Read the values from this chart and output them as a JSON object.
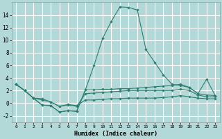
{
  "xlabel": "Humidex (Indice chaleur)",
  "background_color": "#b2d8d8",
  "grid_color": "#ffffff",
  "line_color": "#2e7d6e",
  "xlim": [
    -0.5,
    23.5
  ],
  "ylim": [
    -3.0,
    16.0
  ],
  "xticks": [
    0,
    1,
    2,
    3,
    4,
    5,
    6,
    7,
    8,
    9,
    10,
    11,
    12,
    13,
    14,
    15,
    16,
    17,
    18,
    19,
    20,
    21,
    22,
    23
  ],
  "yticks": [
    -2,
    0,
    2,
    4,
    6,
    8,
    10,
    12,
    14
  ],
  "lines": [
    {
      "x": [
        0,
        1,
        2,
        3,
        4,
        5,
        6,
        7,
        8,
        9,
        10,
        11,
        12,
        13,
        14,
        15,
        16,
        17,
        18,
        19,
        20,
        21,
        22,
        23
      ],
      "y": [
        3.0,
        2.0,
        0.8,
        -0.3,
        -0.4,
        -1.4,
        -1.2,
        -1.3,
        2.1,
        6.0,
        10.3,
        13.0,
        15.3,
        15.2,
        14.8,
        8.5,
        6.5,
        4.5,
        3.0,
        2.8,
        2.5,
        1.5,
        3.8,
        1.2
      ]
    },
    {
      "x": [
        0,
        1,
        2,
        3,
        4,
        5,
        6,
        7,
        8,
        9,
        10,
        11,
        12,
        13,
        14,
        15,
        16,
        17,
        18,
        19,
        20,
        21,
        22,
        23
      ],
      "y": [
        3.0,
        2.0,
        0.8,
        -0.3,
        -0.4,
        -1.4,
        -1.2,
        -1.3,
        2.1,
        2.1,
        2.2,
        2.2,
        2.3,
        2.3,
        2.4,
        2.5,
        2.6,
        2.7,
        2.8,
        3.0,
        2.5,
        1.5,
        1.3,
        1.2
      ]
    },
    {
      "x": [
        0,
        1,
        2,
        3,
        4,
        5,
        6,
        7,
        8,
        9,
        10,
        11,
        12,
        13,
        14,
        15,
        16,
        17,
        18,
        19,
        20,
        21,
        22,
        23
      ],
      "y": [
        3.0,
        2.0,
        0.8,
        0.5,
        0.2,
        -0.5,
        -0.3,
        -0.5,
        1.5,
        1.6,
        1.7,
        1.8,
        1.9,
        2.0,
        2.0,
        2.0,
        2.0,
        2.0,
        2.0,
        2.2,
        2.0,
        1.3,
        1.0,
        1.0
      ]
    },
    {
      "x": [
        0,
        1,
        2,
        3,
        4,
        5,
        6,
        7,
        8,
        9,
        10,
        11,
        12,
        13,
        14,
        15,
        16,
        17,
        18,
        19,
        20,
        21,
        22,
        23
      ],
      "y": [
        3.0,
        2.0,
        0.8,
        0.7,
        0.2,
        -0.5,
        -0.2,
        -0.4,
        0.5,
        0.5,
        0.6,
        0.7,
        0.7,
        0.8,
        0.8,
        0.8,
        0.8,
        0.9,
        1.0,
        1.2,
        1.0,
        0.8,
        0.7,
        0.7
      ]
    }
  ]
}
